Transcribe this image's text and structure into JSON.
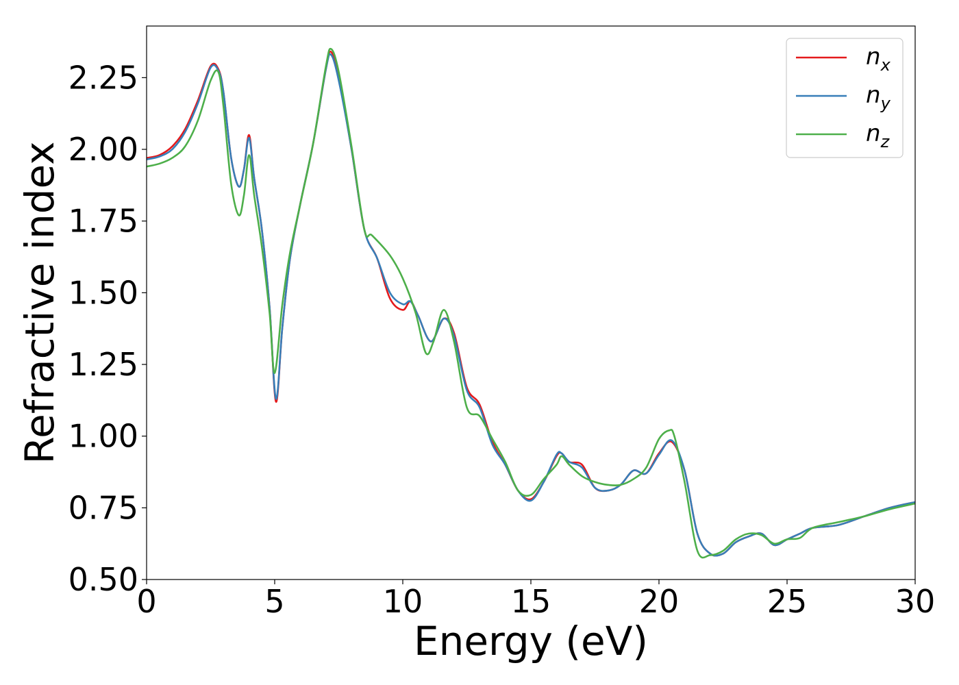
{
  "chart_data": {
    "type": "line",
    "xlabel": "Energy (eV)",
    "ylabel": "Refractive index",
    "xlim": [
      0,
      30
    ],
    "ylim": [
      0.5,
      2.43
    ],
    "xticks": [
      "0",
      "5",
      "10",
      "15",
      "20",
      "25",
      "30"
    ],
    "yticks": [
      "0.50",
      "0.75",
      "1.00",
      "1.25",
      "1.50",
      "1.75",
      "2.00",
      "2.25"
    ],
    "grid": false,
    "legend_position": "top-right",
    "series": [
      {
        "name": "n_x",
        "label_base": "n",
        "label_sub": "x",
        "color": "#e41a1c",
        "x": [
          0,
          0.5,
          1.0,
          1.5,
          2.0,
          2.5,
          2.8,
          3.0,
          3.3,
          3.6,
          3.8,
          4.0,
          4.2,
          4.5,
          4.8,
          5.05,
          5.3,
          5.6,
          6.0,
          6.5,
          7.0,
          7.2,
          7.5,
          8.0,
          8.5,
          9.0,
          9.5,
          10.0,
          10.3,
          10.6,
          11.1,
          11.6,
          12.0,
          12.5,
          13.0,
          13.5,
          14.0,
          14.5,
          15.0,
          15.5,
          16.0,
          16.2,
          16.5,
          17.0,
          17.5,
          18.0,
          18.5,
          19.0,
          19.5,
          20.0,
          20.5,
          21.0,
          21.5,
          22.0,
          22.5,
          23.0,
          23.5,
          24.0,
          24.5,
          25.0,
          25.5,
          26.0,
          27.0,
          28.0,
          29.0,
          30.0
        ],
        "y": [
          1.97,
          1.98,
          2.01,
          2.07,
          2.17,
          2.29,
          2.28,
          2.2,
          1.97,
          1.87,
          1.93,
          2.05,
          1.9,
          1.72,
          1.45,
          1.12,
          1.38,
          1.62,
          1.81,
          2.02,
          2.28,
          2.34,
          2.25,
          2.0,
          1.72,
          1.62,
          1.48,
          1.44,
          1.47,
          1.42,
          1.33,
          1.41,
          1.36,
          1.17,
          1.11,
          0.98,
          0.9,
          0.81,
          0.78,
          0.84,
          0.93,
          0.94,
          0.91,
          0.9,
          0.82,
          0.81,
          0.83,
          0.88,
          0.87,
          0.94,
          0.98,
          0.88,
          0.66,
          0.59,
          0.59,
          0.63,
          0.65,
          0.66,
          0.62,
          0.64,
          0.66,
          0.68,
          0.69,
          0.72,
          0.75,
          0.77
        ]
      },
      {
        "name": "n_y",
        "label_base": "n",
        "label_sub": "y",
        "color": "#377eb8",
        "x": [
          0,
          0.5,
          1.0,
          1.5,
          2.0,
          2.5,
          2.8,
          3.0,
          3.3,
          3.6,
          3.8,
          4.0,
          4.2,
          4.5,
          4.8,
          5.05,
          5.3,
          5.6,
          6.0,
          6.5,
          7.0,
          7.2,
          7.5,
          8.0,
          8.5,
          9.0,
          9.5,
          10.0,
          10.3,
          10.6,
          11.1,
          11.6,
          12.0,
          12.5,
          13.0,
          13.5,
          14.0,
          14.5,
          15.0,
          15.5,
          16.0,
          16.2,
          16.5,
          17.0,
          17.5,
          18.0,
          18.5,
          19.0,
          19.5,
          20.0,
          20.5,
          21.0,
          21.5,
          22.0,
          22.5,
          23.0,
          23.5,
          24.0,
          24.5,
          25.0,
          25.5,
          26.0,
          27.0,
          28.0,
          29.0,
          30.0
        ],
        "y": [
          1.965,
          1.975,
          2.0,
          2.06,
          2.16,
          2.285,
          2.275,
          2.2,
          1.97,
          1.87,
          1.93,
          2.04,
          1.9,
          1.72,
          1.45,
          1.13,
          1.38,
          1.62,
          1.81,
          2.02,
          2.28,
          2.33,
          2.24,
          2.0,
          1.72,
          1.62,
          1.5,
          1.46,
          1.47,
          1.42,
          1.33,
          1.41,
          1.35,
          1.16,
          1.1,
          0.97,
          0.9,
          0.81,
          0.775,
          0.84,
          0.935,
          0.94,
          0.91,
          0.89,
          0.82,
          0.81,
          0.83,
          0.88,
          0.87,
          0.935,
          0.985,
          0.88,
          0.66,
          0.59,
          0.59,
          0.63,
          0.65,
          0.66,
          0.62,
          0.64,
          0.66,
          0.68,
          0.69,
          0.72,
          0.75,
          0.77
        ]
      },
      {
        "name": "n_z",
        "label_base": "n",
        "label_sub": "z",
        "color": "#4daf4a",
        "x": [
          0,
          0.5,
          1.0,
          1.5,
          2.0,
          2.5,
          2.8,
          3.0,
          3.3,
          3.6,
          3.8,
          4.0,
          4.2,
          4.5,
          4.8,
          5.0,
          5.3,
          5.6,
          6.0,
          6.5,
          7.0,
          7.2,
          7.5,
          8.0,
          8.5,
          8.8,
          9.5,
          10.0,
          10.5,
          10.9,
          11.2,
          11.6,
          12.0,
          12.5,
          13.0,
          13.5,
          14.0,
          14.5,
          15.0,
          15.5,
          16.0,
          16.2,
          16.5,
          17.0,
          17.5,
          18.0,
          18.5,
          19.0,
          19.5,
          20.0,
          20.4,
          20.6,
          21.0,
          21.5,
          22.0,
          22.5,
          23.0,
          23.5,
          24.0,
          24.5,
          25.0,
          25.5,
          26.0,
          27.0,
          28.0,
          29.0,
          30.0
        ],
        "y": [
          1.94,
          1.95,
          1.97,
          2.01,
          2.1,
          2.24,
          2.27,
          2.15,
          1.88,
          1.77,
          1.84,
          1.98,
          1.84,
          1.66,
          1.43,
          1.22,
          1.46,
          1.64,
          1.81,
          2.02,
          2.29,
          2.35,
          2.27,
          2.01,
          1.72,
          1.7,
          1.63,
          1.55,
          1.43,
          1.29,
          1.33,
          1.44,
          1.33,
          1.1,
          1.07,
          0.99,
          0.91,
          0.81,
          0.795,
          0.85,
          0.9,
          0.93,
          0.9,
          0.86,
          0.84,
          0.83,
          0.83,
          0.85,
          0.89,
          0.99,
          1.02,
          1.0,
          0.84,
          0.6,
          0.585,
          0.6,
          0.64,
          0.66,
          0.655,
          0.625,
          0.64,
          0.645,
          0.68,
          0.7,
          0.72,
          0.745,
          0.765
        ]
      }
    ]
  }
}
